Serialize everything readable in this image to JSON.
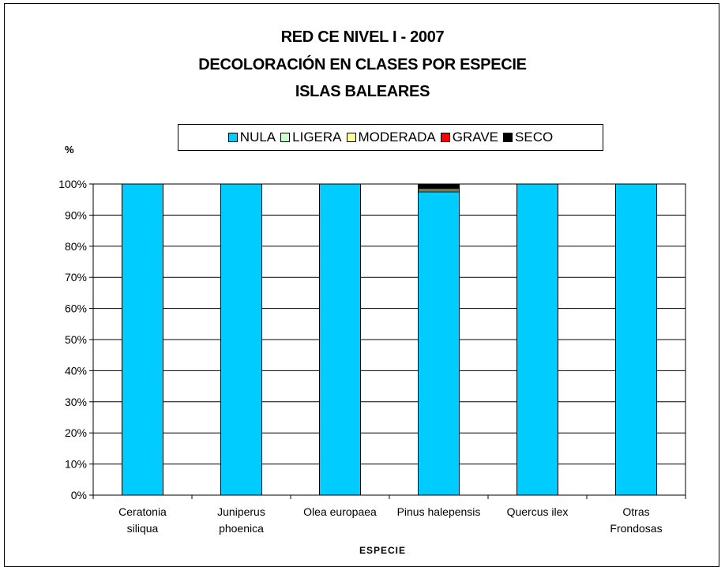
{
  "chart_data": {
    "type": "bar",
    "stacked": true,
    "title_lines": [
      "RED CE NIVEL I - 2007",
      "DECOLORACIÓN EN CLASES POR ESPECIE",
      "ISLAS BALEARES"
    ],
    "ylabel": "%",
    "xlabel": "ESPECIE",
    "categories": [
      [
        "Ceratonia",
        "siliqua"
      ],
      [
        "Juniperus",
        "phoenica"
      ],
      [
        "Olea europaea"
      ],
      [
        "Pinus halepensis"
      ],
      [
        "Quercus ilex"
      ],
      [
        "Otras",
        "Frondosas"
      ]
    ],
    "ylim": [
      0,
      100
    ],
    "yticks": [
      "0%",
      "10%",
      "20%",
      "30%",
      "40%",
      "50%",
      "60%",
      "70%",
      "80%",
      "90%",
      "100%"
    ],
    "grid": true,
    "legend_position": "top",
    "series": [
      {
        "name": "NULA",
        "color": "#00ccff",
        "values": [
          100,
          100,
          100,
          97.5,
          100,
          100
        ]
      },
      {
        "name": "LIGERA",
        "color": "#ccffcc",
        "values": [
          0,
          0,
          0,
          0.5,
          0,
          0
        ]
      },
      {
        "name": "MODERADA",
        "color": "#ffff99",
        "values": [
          0,
          0,
          0,
          0.5,
          0,
          0
        ]
      },
      {
        "name": "GRAVE",
        "color": "#ff0000",
        "values": [
          0,
          0,
          0,
          0,
          0,
          0
        ]
      },
      {
        "name": "SECO",
        "color": "#000000",
        "values": [
          0,
          0,
          0,
          1.5,
          0,
          0
        ]
      }
    ]
  }
}
